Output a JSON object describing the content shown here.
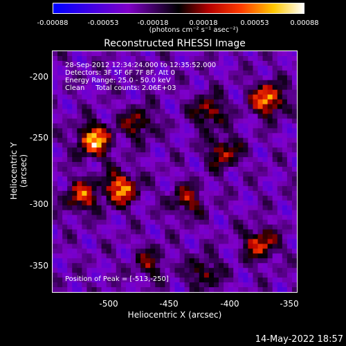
{
  "colorbar": {
    "ticks": [
      "-0.00088",
      "-0.00053",
      "-0.00018",
      "0.00018",
      "0.00053",
      "0.00088"
    ],
    "units": "(photons cm⁻² s⁻¹ asec⁻²)"
  },
  "title": "Reconstructed RHESSI Image",
  "annotations": {
    "line1": "28-Sep-2012 12:34:24.000 to 12:35:52.000",
    "line2": "Detectors: 3F 5F 6F 7F 8F, Att 0",
    "line3": "Energy Range: 25.0 - 50.0 keV",
    "line4": "Clean     Total counts: 2.06E+03",
    "peak": "Position of Peak = [-513,-250]"
  },
  "axes": {
    "xlabel": "Heliocentric X (arcsec)",
    "ylabel": "Heliocentric Y (arcsec)",
    "xticks": [
      "-500",
      "-450",
      "-400",
      "-350"
    ],
    "yticks": [
      "-200",
      "-250",
      "-300",
      "-350"
    ]
  },
  "datestamp": "14-May-2022 18:57"
}
